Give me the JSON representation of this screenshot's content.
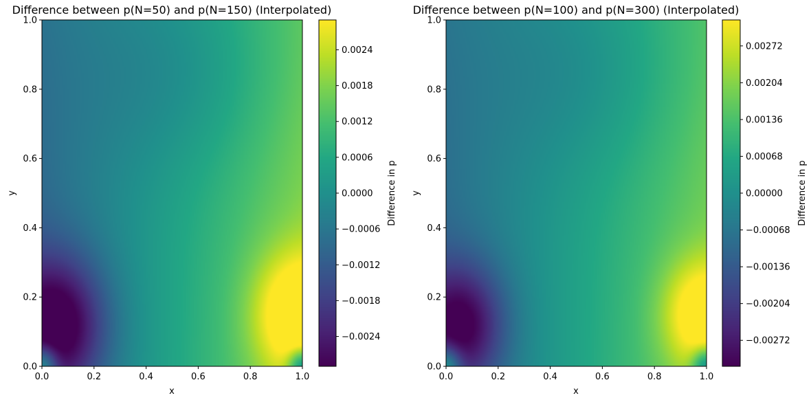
{
  "chart_data": [
    {
      "type": "heatmap",
      "title": "Difference between p(N=50) and p(N=150) (Interpolated)",
      "xlabel": "x",
      "ylabel": "y",
      "xlim": [
        0.0,
        1.0
      ],
      "ylim": [
        0.0,
        1.0
      ],
      "x_ticks": [
        "0.0",
        "0.2",
        "0.4",
        "0.6",
        "0.8",
        "1.0"
      ],
      "y_ticks": [
        "0.0",
        "0.2",
        "0.4",
        "0.6",
        "0.8",
        "1.0"
      ],
      "colormap": "viridis",
      "colorbar": {
        "label": "Difference in p",
        "range": [
          -0.0029,
          0.0029
        ],
        "ticks": [
          "−0.0024",
          "−0.0018",
          "−0.0012",
          "−0.0006",
          "0.0000",
          "0.0006",
          "0.0012",
          "0.0018",
          "0.0024"
        ],
        "tick_values": [
          -0.0024,
          -0.0018,
          -0.0012,
          -0.0006,
          0.0,
          0.0006,
          0.0012,
          0.0018,
          0.0024
        ]
      },
      "features": {
        "min_value": -0.0029,
        "min_location": [
          0.05,
          0.12
        ],
        "max_value": 0.0029,
        "max_location": [
          0.98,
          0.16
        ],
        "corner_values": {
          "bottom_left": 0.0008,
          "bottom_right": 0.0
        }
      }
    },
    {
      "type": "heatmap",
      "title": "Difference between p(N=100) and p(N=300) (Interpolated)",
      "xlabel": "x",
      "ylabel": "y",
      "xlim": [
        0.0,
        1.0
      ],
      "ylim": [
        0.0,
        1.0
      ],
      "x_ticks": [
        "0.0",
        "0.2",
        "0.4",
        "0.6",
        "0.8",
        "1.0"
      ],
      "y_ticks": [
        "0.0",
        "0.2",
        "0.4",
        "0.6",
        "0.8",
        "1.0"
      ],
      "colormap": "viridis",
      "colorbar": {
        "label": "Difference in p",
        "range": [
          -0.0032,
          0.0032
        ],
        "ticks": [
          "−0.00272",
          "−0.00204",
          "−0.00136",
          "−0.00068",
          "0.00000",
          "0.00068",
          "0.00136",
          "0.00204",
          "0.00272"
        ],
        "tick_values": [
          -0.00272,
          -0.00204,
          -0.00136,
          -0.00068,
          0.0,
          0.00068,
          0.00136,
          0.00204,
          0.00272
        ]
      },
      "features": {
        "min_value": -0.0032,
        "min_location": [
          0.04,
          0.1
        ],
        "max_value": 0.0032,
        "max_location": [
          0.98,
          0.12
        ],
        "corner_values": {
          "bottom_left": 0.0008,
          "bottom_right": 0.0
        }
      }
    }
  ]
}
